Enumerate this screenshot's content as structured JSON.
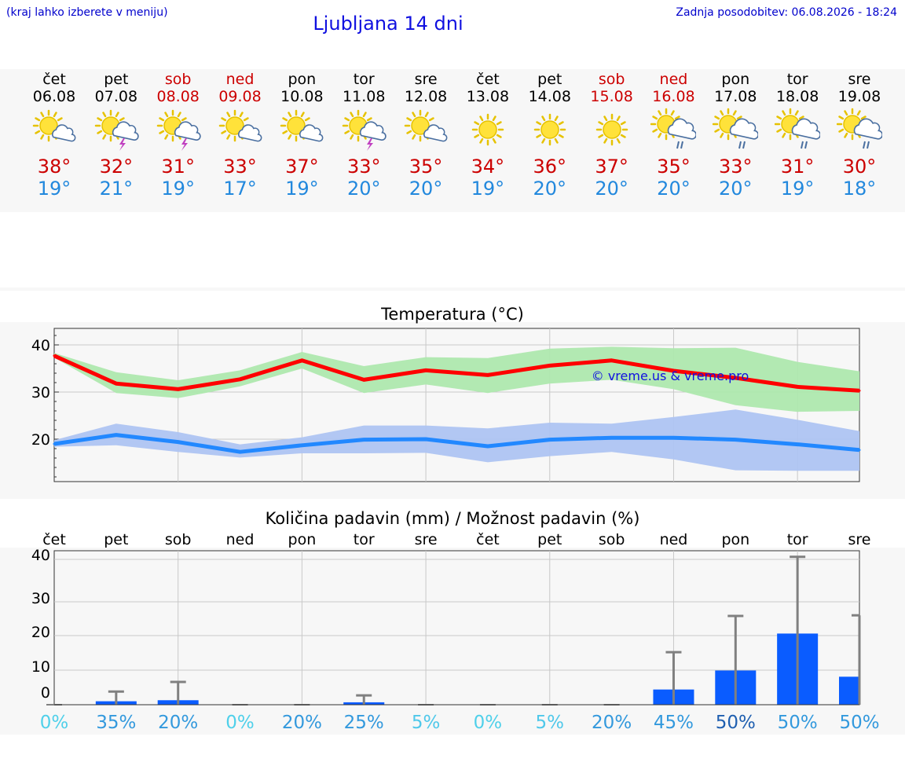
{
  "header": {
    "location_hint": "(kraj lahko izberete v meniju)",
    "title": "Ljubljana 14 dni",
    "updated": "Zadnja posodobitev: 06.08.2026 - 18:24"
  },
  "days": [
    {
      "name": "čet",
      "date": "06.08",
      "weekend": false,
      "icon": "sun-cloud-icon",
      "max": "38°",
      "min": "19°"
    },
    {
      "name": "pet",
      "date": "07.08",
      "weekend": false,
      "icon": "sun-cloud-thunder-icon",
      "max": "32°",
      "min": "21°"
    },
    {
      "name": "sob",
      "date": "08.08",
      "weekend": true,
      "icon": "sun-cloud-thunder-icon",
      "max": "31°",
      "min": "19°"
    },
    {
      "name": "ned",
      "date": "09.08",
      "weekend": true,
      "icon": "sun-cloud-icon",
      "max": "33°",
      "min": "17°"
    },
    {
      "name": "pon",
      "date": "10.08",
      "weekend": false,
      "icon": "sun-cloud-icon",
      "max": "37°",
      "min": "19°"
    },
    {
      "name": "tor",
      "date": "11.08",
      "weekend": false,
      "icon": "sun-cloud-thunder-icon",
      "max": "33°",
      "min": "20°"
    },
    {
      "name": "sre",
      "date": "12.08",
      "weekend": false,
      "icon": "sun-cloud-icon",
      "max": "35°",
      "min": "20°"
    },
    {
      "name": "čet",
      "date": "13.08",
      "weekend": false,
      "icon": "sun-icon",
      "max": "34°",
      "min": "19°"
    },
    {
      "name": "pet",
      "date": "14.08",
      "weekend": false,
      "icon": "sun-icon",
      "max": "36°",
      "min": "20°"
    },
    {
      "name": "sob",
      "date": "15.08",
      "weekend": true,
      "icon": "sun-icon",
      "max": "37°",
      "min": "20°"
    },
    {
      "name": "ned",
      "date": "16.08",
      "weekend": true,
      "icon": "sun-cloud-rain-icon",
      "max": "35°",
      "min": "20°"
    },
    {
      "name": "pon",
      "date": "17.08",
      "weekend": false,
      "icon": "sun-cloud-rain-icon",
      "max": "33°",
      "min": "20°"
    },
    {
      "name": "tor",
      "date": "18.08",
      "weekend": false,
      "icon": "sun-cloud-rain-icon",
      "max": "31°",
      "min": "19°"
    },
    {
      "name": "sre",
      "date": "19.08",
      "weekend": false,
      "icon": "sun-cloud-rain-icon",
      "max": "30°",
      "min": "18°"
    }
  ],
  "colors": {
    "max_line": "#ff0000",
    "max_band": "#aee8ae",
    "min_line": "#2288ff",
    "min_band": "#aec4f2",
    "precip_bar": "#0a5cff",
    "error_bar": "#808080",
    "grid": "#c8c8c8",
    "weekend_text": "#cc0000"
  },
  "chart_data": [
    {
      "type": "line",
      "title": "Temperatura (°C)",
      "watermark": "© vreme.us & vreme.pro",
      "yticks": [
        20,
        30,
        40
      ],
      "ylim": [
        11,
        43.5
      ],
      "grid": true,
      "series": [
        {
          "values": [
            37.7,
            31.8,
            30.6,
            32.7,
            36.7,
            32.6,
            34.6,
            33.6,
            35.6,
            36.7,
            34.5,
            33.0,
            31.1,
            30.3
          ],
          "band_low": [
            37.3,
            29.8,
            28.7,
            31.2,
            35.0,
            29.8,
            31.6,
            29.8,
            31.8,
            32.6,
            30.6,
            27.2,
            25.8,
            26.0
          ],
          "band_high": [
            38.3,
            34.2,
            32.5,
            34.6,
            38.5,
            35.5,
            37.4,
            37.2,
            39.2,
            39.6,
            39.3,
            39.4,
            36.4,
            34.4
          ]
        },
        {
          "values": [
            19.0,
            20.9,
            19.4,
            17.3,
            18.7,
            19.9,
            20.0,
            18.5,
            19.9,
            20.3,
            20.3,
            19.9,
            18.9,
            17.7
          ],
          "band_low": [
            18.4,
            18.7,
            17.3,
            16.1,
            17.0,
            17.0,
            17.1,
            15.1,
            16.4,
            17.3,
            15.7,
            13.4,
            13.3,
            13.3
          ],
          "band_high": [
            19.8,
            23.3,
            21.5,
            18.9,
            20.4,
            22.9,
            22.9,
            22.3,
            23.5,
            23.3,
            24.7,
            26.3,
            24.1,
            21.7
          ]
        }
      ]
    },
    {
      "type": "bar",
      "title": "Količina padavin (mm) / Možnost padavin (%)",
      "categories": [
        "čet",
        "pet",
        "sob",
        "ned",
        "pon",
        "tor",
        "sre",
        "čet",
        "pet",
        "sob",
        "ned",
        "pon",
        "tor",
        "sre"
      ],
      "values": [
        0,
        1.0,
        1.3,
        0,
        0,
        0.7,
        0,
        0,
        0,
        0,
        4.4,
        9.9,
        20.6,
        8.1
      ],
      "error_high": [
        0,
        3.8,
        6.6,
        0,
        0,
        2.7,
        0,
        0,
        0,
        0,
        15.2,
        25.8,
        40.6,
        26.0
      ],
      "probability": [
        "0%",
        "35%",
        "20%",
        "0%",
        "20%",
        "25%",
        "5%",
        "0%",
        "5%",
        "20%",
        "45%",
        "50%",
        "50%",
        "50%"
      ],
      "ytick_labels": [
        "0",
        "10",
        "20",
        "30",
        "40"
      ],
      "grid": true
    }
  ]
}
